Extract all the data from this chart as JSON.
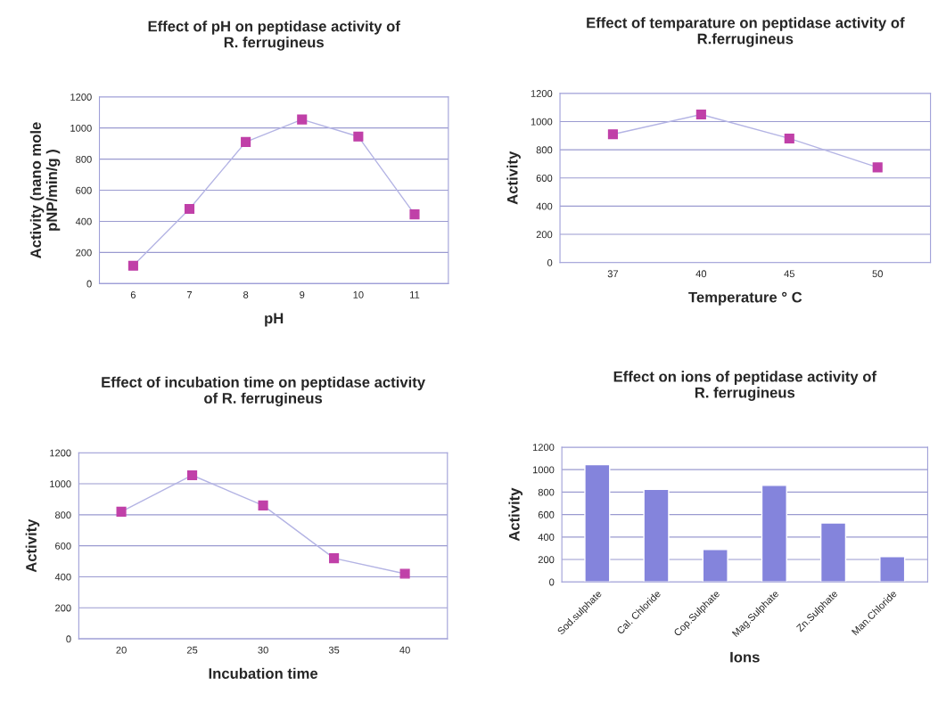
{
  "chart_data": [
    {
      "type": "line",
      "title": "Effect of pH on peptidase activity of\nR. ferrugineus",
      "xlabel": "pH",
      "ylabel": "Activity (nano mole\npNP/min/g )",
      "categories": [
        "6",
        "7",
        "8",
        "9",
        "10",
        "11"
      ],
      "series": [
        {
          "color": "#c040a8",
          "values": [
            115,
            480,
            910,
            1055,
            945,
            445
          ]
        }
      ],
      "ylim": [
        0,
        1200
      ],
      "yticks": [
        0,
        200,
        400,
        600,
        800,
        1000,
        1200
      ],
      "grid": "y",
      "marker": "square",
      "line_style": "solid"
    },
    {
      "type": "line",
      "title": "Effect of temparature on peptidase activity of\nR.ferrugineus",
      "xlabel": "Temperature ° C",
      "ylabel": "Activity",
      "categories": [
        "37",
        "40",
        "45",
        "50"
      ],
      "series": [
        {
          "color": "#c040a8",
          "values": [
            910,
            1050,
            880,
            675
          ]
        }
      ],
      "ylim": [
        0,
        1200
      ],
      "yticks": [
        0,
        200,
        400,
        600,
        800,
        1000,
        1200
      ],
      "grid": "y",
      "marker": "square",
      "line_style": "solid"
    },
    {
      "type": "line",
      "title": "Effect of incubation time on peptidase activity\nof R. ferrugineus",
      "xlabel": "Incubation time",
      "ylabel": "Activity",
      "categories": [
        "20",
        "25",
        "30",
        "35",
        "40"
      ],
      "series": [
        {
          "color": "#c040a8",
          "values": [
            820,
            1055,
            860,
            520,
            420
          ]
        }
      ],
      "ylim": [
        0,
        1200
      ],
      "yticks": [
        0,
        200,
        400,
        600,
        800,
        1000,
        1200
      ],
      "grid": "y",
      "marker": "square",
      "line_style": "solid"
    },
    {
      "type": "bar",
      "title": "Effect on ions of peptidase activity of\nR. ferrugineus",
      "xlabel": "Ions",
      "ylabel": "Activity",
      "categories": [
        "Sod.sulphate",
        "Cal. Chloride",
        "Cop.Sulphate",
        "Mag.Sulphate",
        "Zn.Sulphate",
        "Man.Chloride"
      ],
      "series": [
        {
          "color": "#8484dc",
          "values": [
            1045,
            825,
            290,
            860,
            525,
            225
          ]
        }
      ],
      "ylim": [
        0,
        1200
      ],
      "yticks": [
        0,
        200,
        400,
        600,
        800,
        1000,
        1200
      ],
      "grid": "y"
    }
  ]
}
